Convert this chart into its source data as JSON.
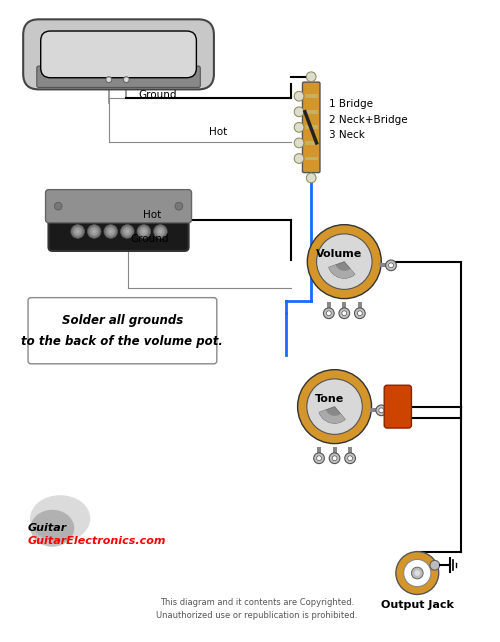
{
  "bg_color": "#ffffff",
  "switch_label": [
    "1 Bridge",
    "2 Neck+Bridge",
    "3 Neck"
  ],
  "note_text": [
    "Solder all grounds",
    "to the back of the volume pot."
  ],
  "copyright_text": [
    "This diagram and it contents are Copyrighted.",
    "Unauthorized use or republication is prohibited."
  ],
  "site_text": "GuitarElectronics.com",
  "output_jack_label": "Output Jack",
  "volume_label": "Volume",
  "tone_label": "Tone",
  "hot_label": "Hot",
  "ground_label": "Ground",
  "wire_black": "#000000",
  "wire_blue": "#1a6aff",
  "wire_gray": "#aaaaaa",
  "pot_body_color": "#d4952a",
  "pot_top_color": "#d8d8d8",
  "pot_lug_color": "#c0c0c0",
  "cap_color": "#cc4400",
  "switch_body_color": "#d4952a",
  "neck_pickup_cover": "#c8c8c8",
  "neck_pickup_base": "#999999",
  "bridge_pickup_body": "#222222",
  "bridge_pickup_plate": "#888888",
  "bridge_pickup_pole": "#888888",
  "output_jack_color": "#d4952a",
  "output_jack_inner": "#ffffff",
  "gray_wire": "#888888"
}
